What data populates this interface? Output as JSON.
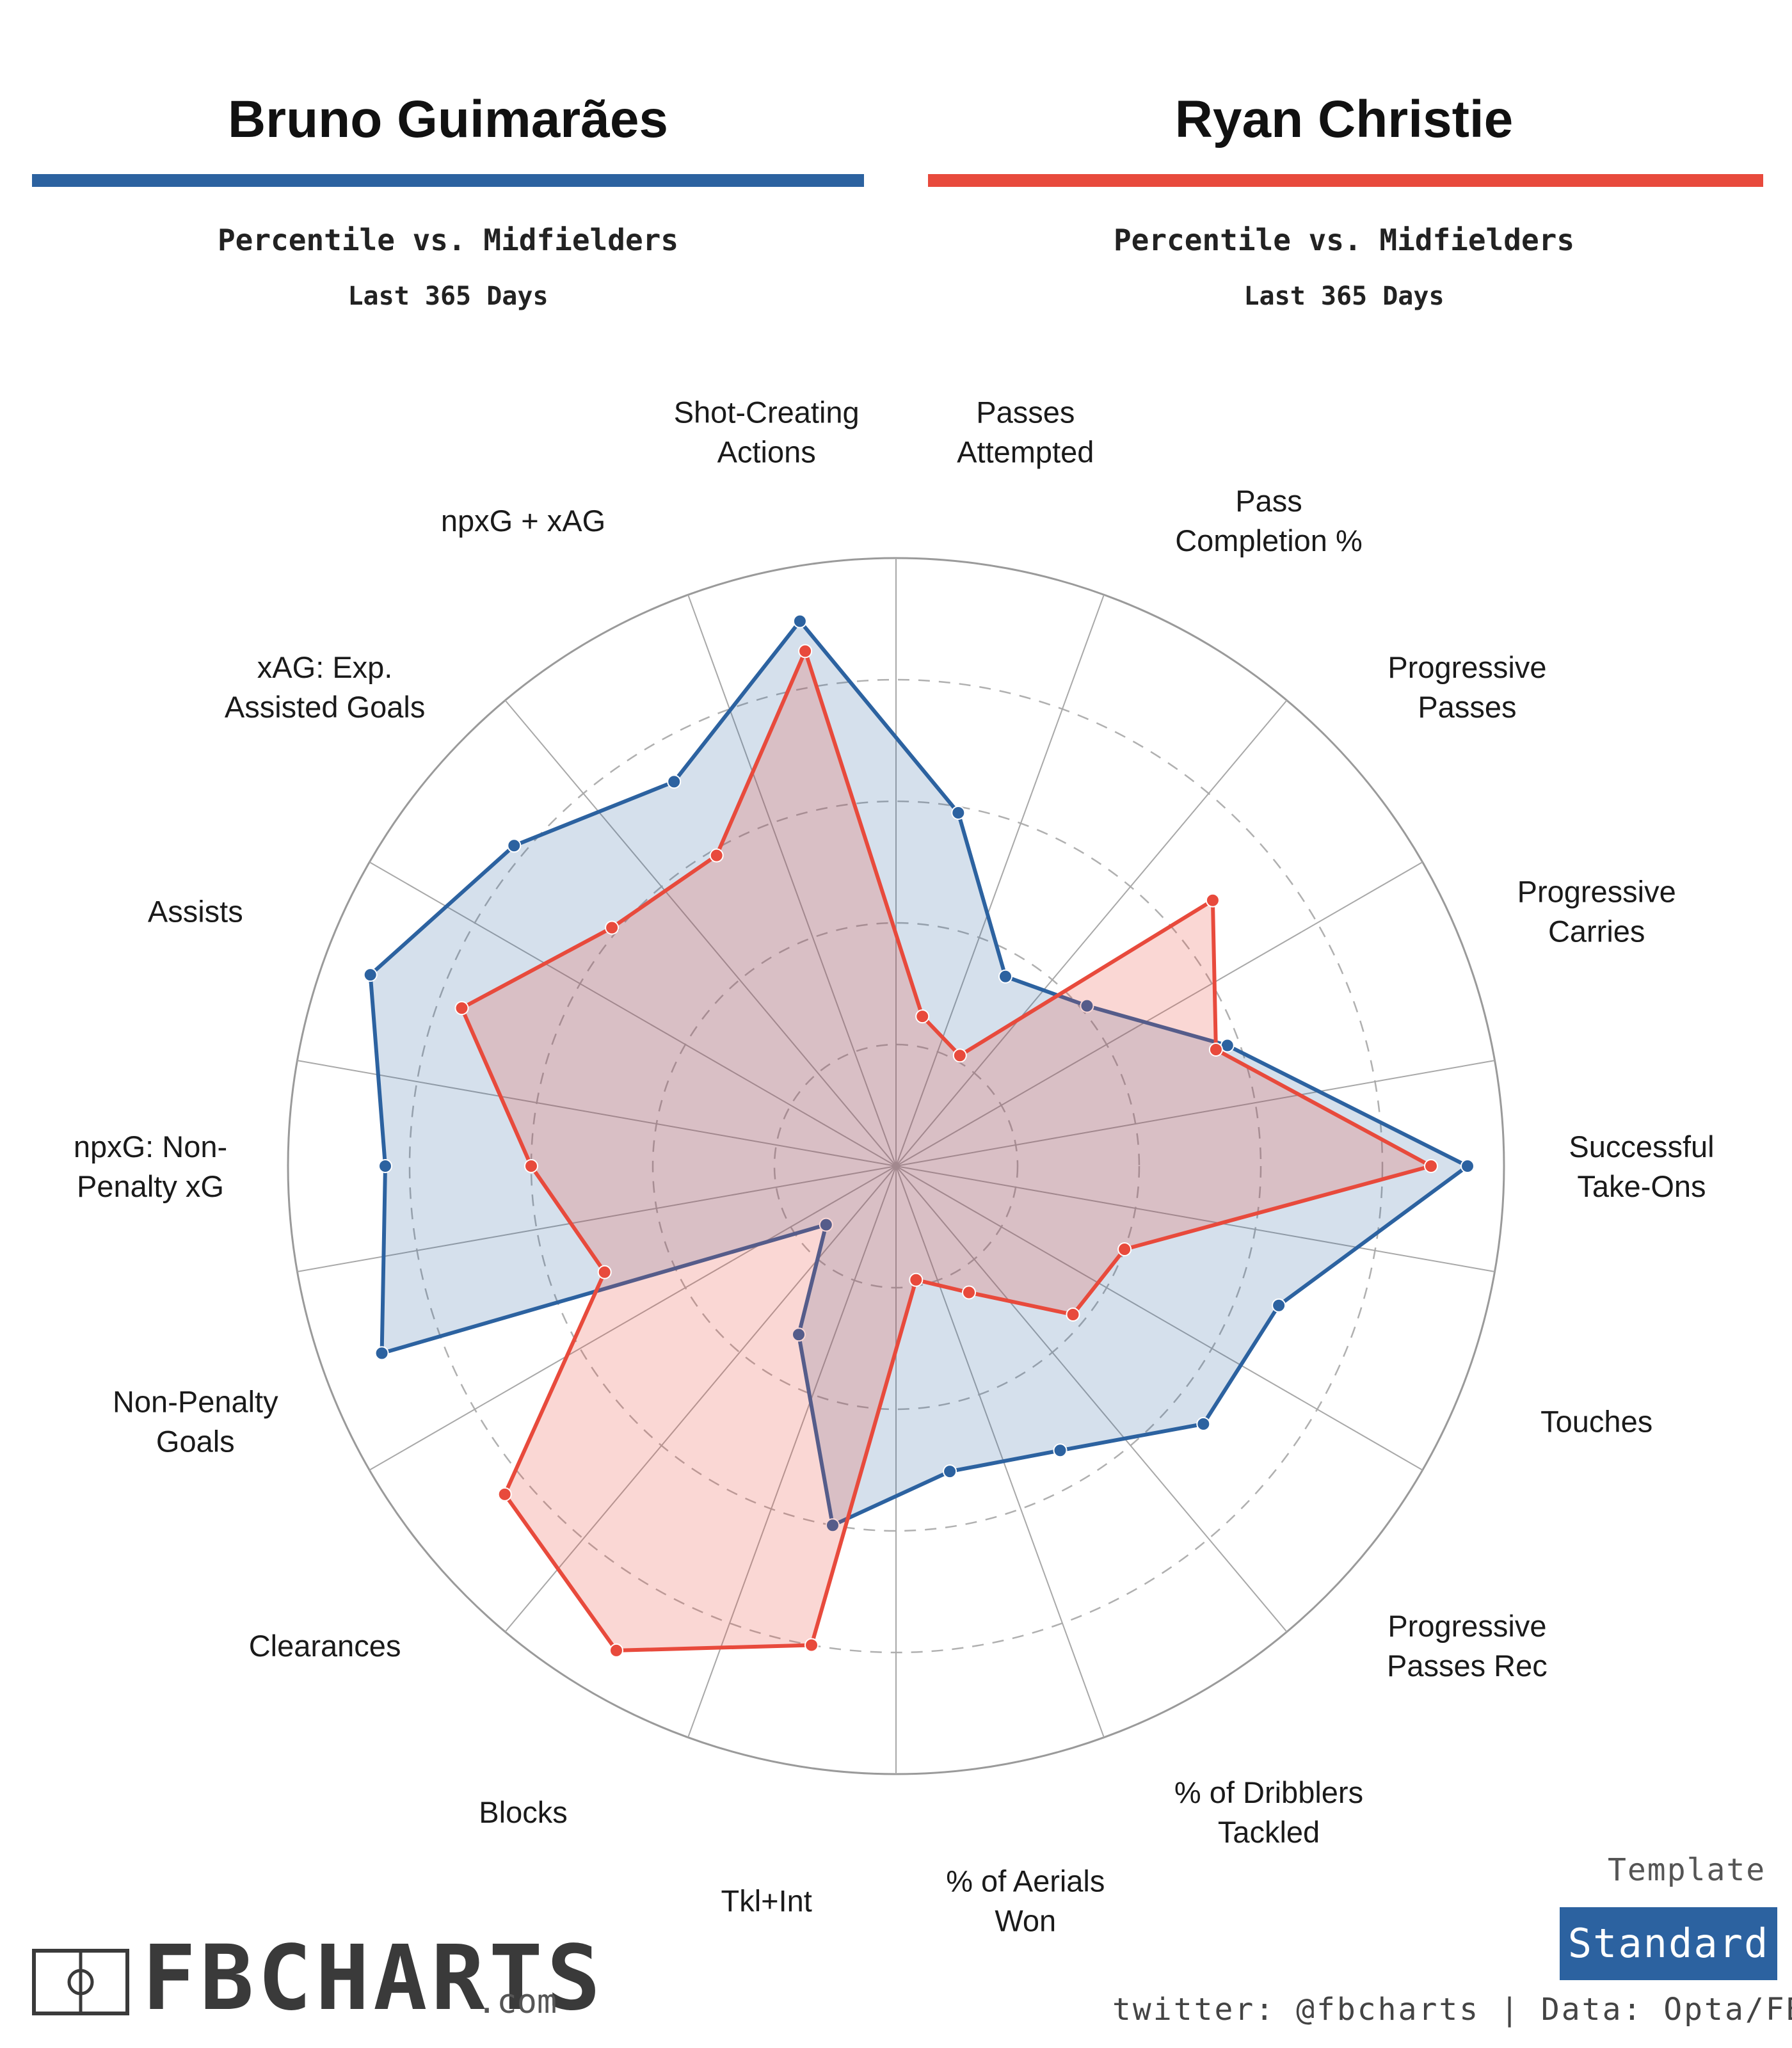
{
  "players": [
    {
      "name": "Bruno Guimarães",
      "color": "#2c62a0",
      "subtitle": "Percentile vs. Midfielders",
      "period": "Last 365 Days"
    },
    {
      "name": "Ryan Christie",
      "color": "#e84a3c",
      "subtitle": "Percentile vs. Midfielders",
      "period": "Last 365 Days"
    }
  ],
  "chart_data": {
    "type": "radar",
    "range": [
      0,
      100
    ],
    "gridlines": [
      20,
      40,
      60,
      80,
      100
    ],
    "categories": [
      [
        "Shot-Creating",
        "Actions"
      ],
      [
        "Passes",
        "Attempted"
      ],
      [
        "Pass",
        "Completion %"
      ],
      [
        "Progressive",
        "Passes"
      ],
      [
        "Progressive",
        "Carries"
      ],
      [
        "Successful",
        "Take-Ons"
      ],
      [
        "Touches"
      ],
      [
        "Progressive",
        "Passes Rec"
      ],
      [
        "% of Dribblers",
        "Tackled"
      ],
      [
        "% of Aerials",
        "Won"
      ],
      [
        "Tkl+Int"
      ],
      [
        "Blocks"
      ],
      [
        "Clearances"
      ],
      [
        "Non-Penalty",
        "Goals"
      ],
      [
        "npxG: Non-",
        "Penalty xG"
      ],
      [
        "Assists"
      ],
      [
        "xAG: Exp.",
        "Assisted Goals"
      ],
      [
        "npxG + xAG"
      ]
    ],
    "series": [
      {
        "name": "Bruno Guimarães",
        "color": "#2c62a0",
        "values": [
          91,
          59,
          36,
          41,
          58,
          94,
          67,
          66,
          54,
          51,
          60,
          32,
          15,
          90,
          84,
          92,
          82,
          73
        ]
      },
      {
        "name": "Ryan Christie",
        "color": "#e84a3c",
        "values": [
          86,
          25,
          21,
          68,
          56,
          88,
          40,
          38,
          24,
          19,
          80,
          92,
          84,
          51,
          60,
          76,
          61,
          59
        ]
      }
    ]
  },
  "logo": {
    "brand": "FBCHARTS",
    "suffix": ".com"
  },
  "footer": {
    "credits": "twitter: @fbcharts | Data: Opta/FBref"
  },
  "template": {
    "label": "Template",
    "value": "Standard"
  }
}
